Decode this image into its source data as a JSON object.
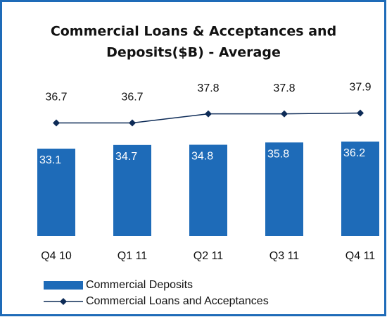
{
  "chart_data": {
    "type": "bar_line",
    "title": [
      "Commercial Loans & Acceptances and",
      "Deposits($B) - Average"
    ],
    "categories": [
      "Q4 10",
      "Q1 11",
      "Q2 11",
      "Q3 11",
      "Q4 11"
    ],
    "ylim": [
      -5,
      58
    ],
    "y2lim": [
      23,
      40.5
    ],
    "series": [
      {
        "name": "Commercial Deposits",
        "type": "bar",
        "color": "#1e6bb8",
        "values": [
          33.1,
          34.7,
          34.8,
          35.8,
          36.2
        ]
      },
      {
        "name": "Commercial Loans and Acceptances",
        "type": "line",
        "axis": "y2",
        "color": "#0d2b57",
        "values": [
          36.7,
          36.7,
          37.8,
          37.8,
          37.9
        ]
      }
    ]
  }
}
